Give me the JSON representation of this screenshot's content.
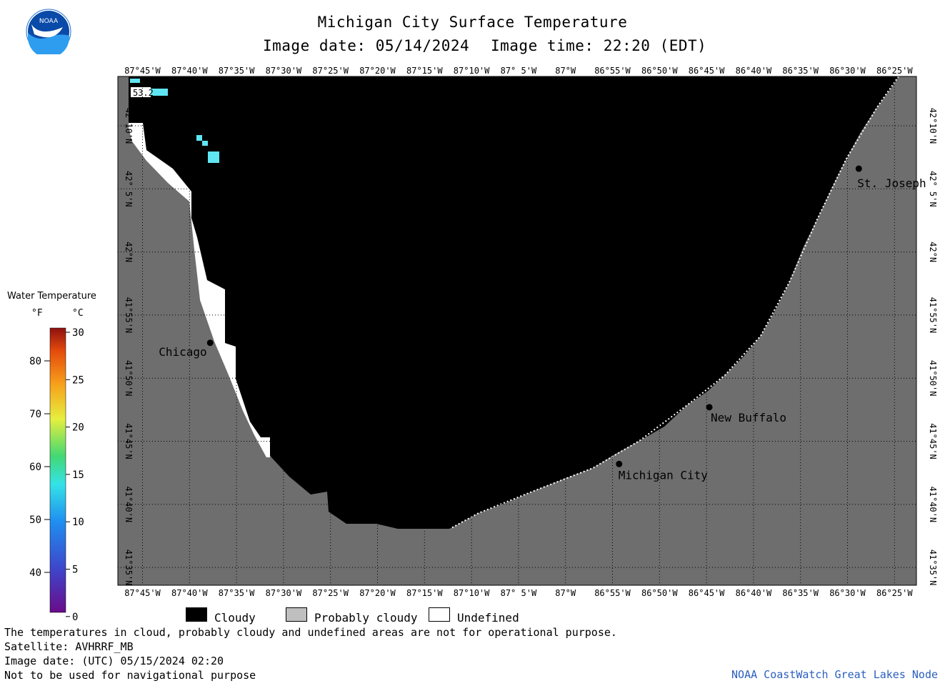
{
  "title": "Michigan City Surface Temperature",
  "image_date_local": "Image date: 05/14/2024",
  "image_time_local": "Image time: 22:20 (EDT)",
  "logo_text": "NOAA",
  "longitude_ticks": [
    "87°45'W",
    "87°40'W",
    "87°35'W",
    "87°30'W",
    "87°25'W",
    "87°20'W",
    "87°15'W",
    "87°10'W",
    "87° 5'W",
    "87°W",
    "86°55'W",
    "86°50'W",
    "86°45'W",
    "86°40'W",
    "86°35'W",
    "86°30'W",
    "86°25'W"
  ],
  "latitude_ticks": [
    "42°10'N",
    "42° 5'N",
    "42°N",
    "41°55'N",
    "41°50'N",
    "41°45'N",
    "41°40'N",
    "41°35'N"
  ],
  "cities": [
    {
      "name": "Chicago",
      "lon": -87.63,
      "lat": 41.88
    },
    {
      "name": "St. Joseph",
      "lon": -86.48,
      "lat": 42.11
    },
    {
      "name": "New Buffalo",
      "lon": -86.745,
      "lat": 41.795
    },
    {
      "name": "Michigan City",
      "lon": -86.905,
      "lat": 41.72
    }
  ],
  "sample_value": "53.2",
  "legend": {
    "title": "Water Temperature",
    "unit_f": "°F",
    "unit_c": "°C",
    "f_ticks": [
      "80",
      "70",
      "60",
      "50",
      "40"
    ],
    "c_ticks": [
      "30",
      "25",
      "20",
      "15",
      "10",
      "5",
      "0"
    ]
  },
  "key": {
    "cloudy": "Cloudy",
    "probably_cloudy": "Probably cloudy",
    "undefined": "Undefined",
    "colors": {
      "cloudy": "#000000",
      "probably_cloudy": "#bfbfbf",
      "undefined": "#ffffff",
      "land": "#6e6e6e"
    }
  },
  "footer": {
    "note": "The temperatures in cloud, probably cloudy and undefined areas are not for operational purpose.",
    "satellite": "Satellite: AVHRRF_MB",
    "utc_date": "Image date: (UTC) 05/15/2024  02:20",
    "warning": "Not to be used for navigational purpose",
    "credit": "NOAA CoastWatch Great Lakes Node"
  }
}
